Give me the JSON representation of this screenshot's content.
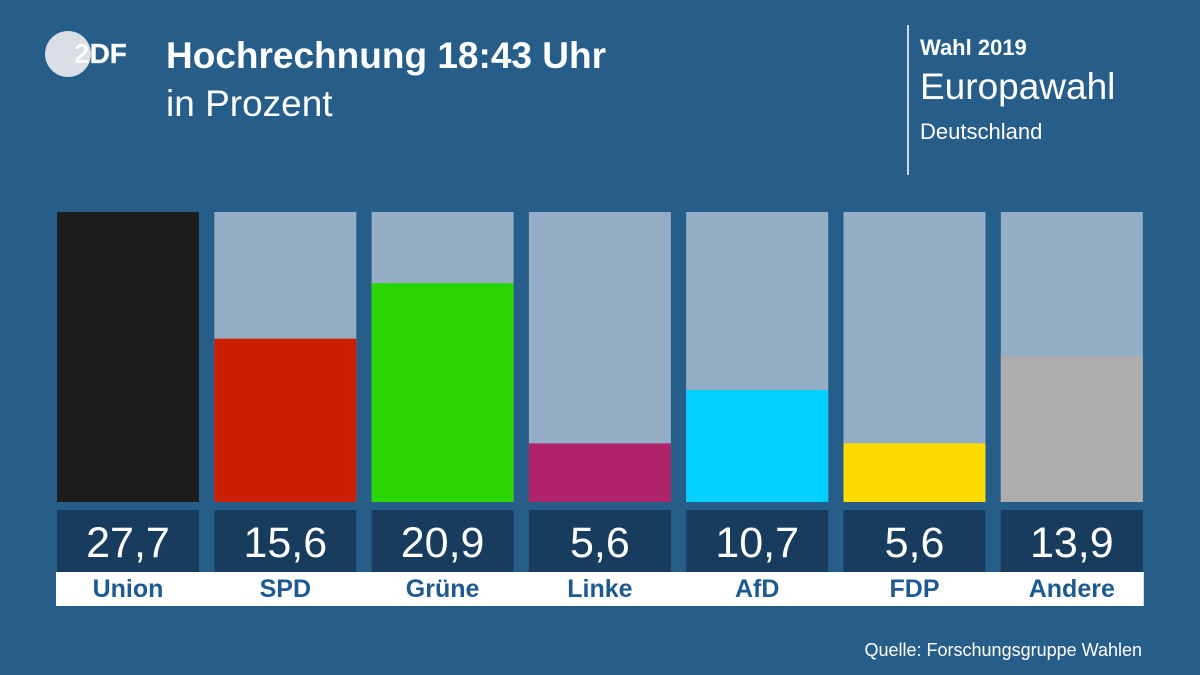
{
  "logo": {
    "text": "2DF"
  },
  "header": {
    "title": "Hochrechnung 18:43 Uhr",
    "subtitle": "in Prozent"
  },
  "info": {
    "year": "Wahl 2019",
    "election": "Europawahl",
    "country": "Deutschland"
  },
  "source": "Quelle: Forschungsgruppe Wahlen",
  "chart_data": {
    "type": "bar",
    "title": "Hochrechnung 18:43 Uhr",
    "subtitle": "in Prozent",
    "categories": [
      "Union",
      "SPD",
      "Grüne",
      "Linke",
      "AfD",
      "FDP",
      "Andere"
    ],
    "values": [
      27.7,
      15.6,
      20.9,
      5.6,
      10.7,
      5.6,
      13.9
    ],
    "value_labels": [
      "27,7",
      "15,6",
      "20,9",
      "5,6",
      "10,7",
      "5,6",
      "13,9"
    ],
    "colors": [
      "#1c1c1c",
      "#cc1f00",
      "#2bd600",
      "#b0246c",
      "#00d0ff",
      "#ffdb00",
      "#adadad"
    ],
    "ylim": [
      0,
      27.7
    ],
    "background_bar_color": "#93aec5",
    "grid": false,
    "legend": "none"
  }
}
